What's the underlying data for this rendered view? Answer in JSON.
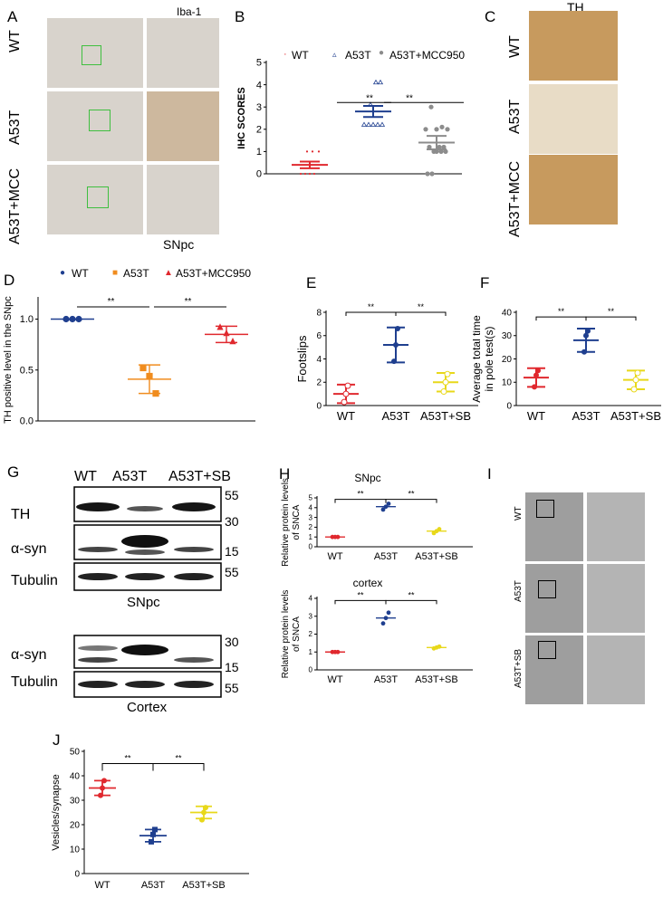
{
  "panels": {
    "A": {
      "label": "A",
      "header": "Iba-1",
      "footer": "SNpc",
      "rows": [
        "WT",
        "A53T",
        "A53T+MCC"
      ]
    },
    "B": {
      "label": "B",
      "legend": [
        "WT",
        "A53T",
        "A53T+MCC950"
      ],
      "significance": [
        "**",
        "**"
      ],
      "chart_data": {
        "type": "scatter",
        "ylabel": "IHC SCORES",
        "ylim": [
          0,
          5
        ],
        "yticks": [
          "0",
          "1",
          "2",
          "3",
          "4",
          "5"
        ],
        "series": [
          {
            "name": "WT",
            "mean": 0.4,
            "sem": 0.15,
            "points": [
              0,
              0,
              0,
              0,
              1,
              1,
              1
            ]
          },
          {
            "name": "A53T",
            "mean": 2.8,
            "sem": 0.25,
            "points": [
              2.2,
              2.2,
              2.2,
              2.2,
              2.2,
              3.1,
              4.1,
              4.1
            ]
          },
          {
            "name": "A53T+MCC950",
            "mean": 1.4,
            "sem": 0.3,
            "points": [
              0,
              0,
              1,
              1,
              1,
              1,
              1.2,
              1.2,
              1.2,
              2,
              2,
              2,
              2.1,
              3
            ]
          }
        ],
        "colors": [
          "#e0282e",
          "#1f3f8f",
          "#8c8c8c"
        ]
      }
    },
    "C": {
      "label": "C",
      "header": "TH",
      "rows": [
        "WT",
        "A53T",
        "A53T+MCC"
      ]
    },
    "D": {
      "label": "D",
      "legend": [
        "WT",
        "A53T",
        "A53T+MCC950"
      ],
      "significance": [
        "**",
        "**"
      ],
      "chart_data": {
        "type": "scatter",
        "ylabel": "TH positive level in the SNpc",
        "ylim": [
          0,
          1.2
        ],
        "yticks": [
          "0.0",
          "0.5",
          "1.0"
        ],
        "series": [
          {
            "name": "WT",
            "mean": 1.0,
            "sd": 0.0,
            "points": [
              1.0,
              1.0,
              1.0
            ]
          },
          {
            "name": "A53T",
            "mean": 0.41,
            "sd": 0.14,
            "points": [
              0.52,
              0.27,
              0.44
            ]
          },
          {
            "name": "A53T+MCC950",
            "mean": 0.85,
            "sd": 0.08,
            "points": [
              0.92,
              0.78,
              0.86
            ]
          }
        ],
        "colors": [
          "#1f3f8f",
          "#f08c1e",
          "#e0282e"
        ]
      }
    },
    "E": {
      "label": "E",
      "significance": [
        "**",
        "**"
      ],
      "chart_data": {
        "type": "scatter",
        "ylabel": "Footslips",
        "ylim": [
          0,
          8
        ],
        "yticks": [
          "0",
          "2",
          "4",
          "6",
          "8"
        ],
        "categories": [
          "WT",
          "A53T",
          "A53T+SB"
        ],
        "series": [
          {
            "name": "WT",
            "mean": 1.0,
            "sd": 0.8,
            "points": [
              1.7,
              0.3,
              1.0
            ]
          },
          {
            "name": "A53T",
            "mean": 5.2,
            "sd": 1.5,
            "points": [
              6.6,
              3.8,
              5.2
            ]
          },
          {
            "name": "A53T+SB",
            "mean": 2.0,
            "sd": 0.8,
            "points": [
              2.7,
              1.2,
              2.0
            ]
          }
        ],
        "colors": [
          "#e0282e",
          "#1f3f8f",
          "#e8d81a"
        ]
      }
    },
    "F": {
      "label": "F",
      "significance": [
        "**",
        "**"
      ],
      "chart_data": {
        "type": "scatter",
        "ylabel": "Average total time in pole test(s)",
        "ylim": [
          0,
          40
        ],
        "yticks": [
          "0",
          "10",
          "20",
          "30",
          "40"
        ],
        "categories": [
          "WT",
          "A53T",
          "A53T+SB"
        ],
        "series": [
          {
            "name": "WT",
            "mean": 12,
            "sd": 4,
            "points": [
              15,
              8,
              13
            ]
          },
          {
            "name": "A53T",
            "mean": 28,
            "sd": 5,
            "points": [
              32,
              23,
              30
            ]
          },
          {
            "name": "A53T+SB",
            "mean": 11,
            "sd": 4,
            "points": [
              14,
              7,
              11
            ]
          }
        ],
        "colors": [
          "#e0282e",
          "#1f3f8f",
          "#e8d81a"
        ]
      }
    },
    "G": {
      "label": "G",
      "lanes": [
        "WT",
        "A53T",
        "A53T+SB"
      ],
      "snpc_rows": [
        "TH",
        "α-syn",
        "Tubulin"
      ],
      "snpc_markers": [
        "55",
        "30",
        "15",
        "55"
      ],
      "snpc_caption": "SNpc",
      "cortex_rows": [
        "α-syn",
        "Tubulin"
      ],
      "cortex_markers": [
        "30",
        "15",
        "55"
      ],
      "cortex_caption": "Cortex"
    },
    "H": {
      "label": "H",
      "chart_data": [
        {
          "type": "scatter",
          "title": "SNpc",
          "ylabel": "Relative protein levels of SNCA",
          "ylim": [
            0,
            5
          ],
          "yticks": [
            "0",
            "1",
            "2",
            "3",
            "4",
            "5"
          ],
          "categories": [
            "WT",
            "A53T",
            "A53T+SB"
          ],
          "series": [
            {
              "name": "WT",
              "mean": 1.0,
              "points": [
                1.0,
                1.0,
                1.0
              ]
            },
            {
              "name": "A53T",
              "mean": 4.1,
              "points": [
                4.4,
                3.8,
                4.1
              ]
            },
            {
              "name": "A53T+SB",
              "mean": 1.6,
              "points": [
                1.8,
                1.4,
                1.6
              ]
            }
          ],
          "significance": [
            "**",
            "**"
          ]
        },
        {
          "type": "scatter",
          "title": "cortex",
          "ylabel": "Relative protein levels of SNCA",
          "ylim": [
            0,
            4
          ],
          "yticks": [
            "0",
            "1",
            "2",
            "3",
            "4"
          ],
          "categories": [
            "WT",
            "A53T",
            "A53T+SB"
          ],
          "series": [
            {
              "name": "WT",
              "mean": 1.0,
              "points": [
                1.0,
                1.0,
                1.0
              ]
            },
            {
              "name": "A53T",
              "mean": 2.9,
              "points": [
                3.2,
                2.6,
                2.9
              ]
            },
            {
              "name": "A53T+SB",
              "mean": 1.25,
              "points": [
                1.3,
                1.2,
                1.25
              ]
            }
          ],
          "significance": [
            "**",
            "**"
          ]
        }
      ],
      "colors": [
        "#e0282e",
        "#1f3f8f",
        "#e8d81a"
      ]
    },
    "I": {
      "label": "I",
      "rows": [
        "WT",
        "A53T",
        "A53T+SB"
      ]
    },
    "J": {
      "label": "J",
      "significance": [
        "**",
        "**"
      ],
      "chart_data": {
        "type": "scatter",
        "ylabel": "Vesicles/synapse",
        "ylim": [
          0,
          50
        ],
        "yticks": [
          "0",
          "10",
          "20",
          "30",
          "40",
          "50"
        ],
        "categories": [
          "WT",
          "A53T",
          "A53T+SB"
        ],
        "series": [
          {
            "name": "WT",
            "mean": 35,
            "sd": 3,
            "points": [
              38,
              32,
              35
            ]
          },
          {
            "name": "A53T",
            "mean": 15.5,
            "sd": 2.5,
            "points": [
              18,
              13,
              16
            ]
          },
          {
            "name": "A53T+SB",
            "mean": 25,
            "sd": 2.5,
            "points": [
              27,
              22,
              25
            ]
          }
        ],
        "colors": [
          "#e0282e",
          "#1f3f8f",
          "#e8d81a"
        ]
      }
    }
  }
}
